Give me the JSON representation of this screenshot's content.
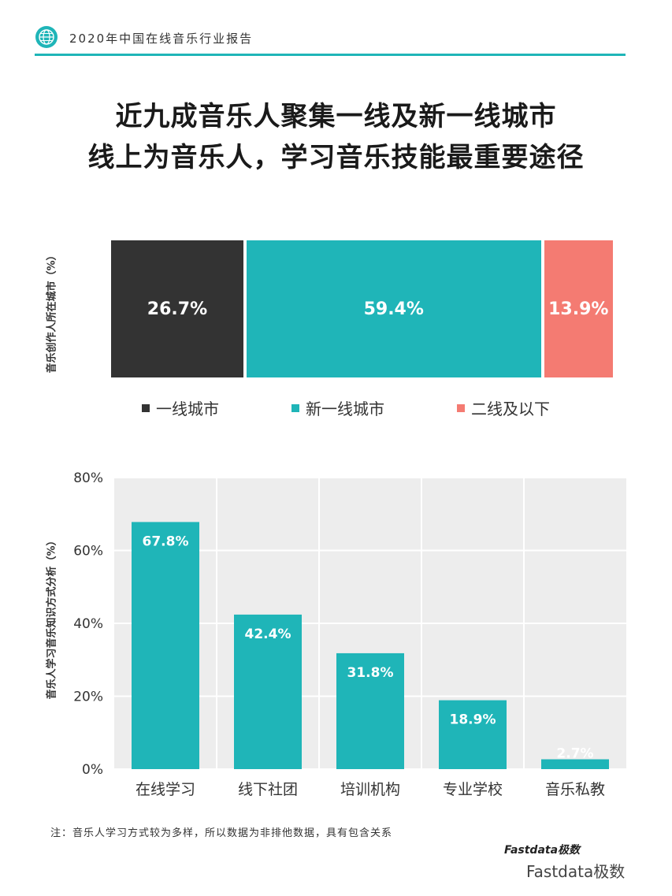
{
  "header": {
    "title": "2020年中国在线音乐行业报告",
    "icon": "globe-icon"
  },
  "main_title": {
    "line1": "近九成音乐人聚集一线及新一线城市",
    "line2": "线上为音乐人，学习音乐技能最重要途径"
  },
  "colors": {
    "accent": "#1fb5b8",
    "dark": "#333333",
    "coral": "#f47b72",
    "grid_bg": "#ededed"
  },
  "note": "注：音乐人学习方式较为多样，所以数据为非排他数据，具有包含关系",
  "brand": "Fastdata极数",
  "watermark": "Fastdata极数",
  "chart_data": [
    {
      "type": "bar",
      "stacked": true,
      "orientation": "horizontal",
      "ylabel": "音乐创作人所在城市（%）",
      "series": [
        {
          "name": "一线城市",
          "value": 26.7,
          "label": "26.7%",
          "color": "#333333"
        },
        {
          "name": "新一线城市",
          "value": 59.4,
          "label": "59.4%",
          "color": "#1fb5b8"
        },
        {
          "name": "二线及以下",
          "value": 13.9,
          "label": "13.9%",
          "color": "#f47b72"
        }
      ],
      "legend_position": "bottom"
    },
    {
      "type": "bar",
      "ylabel": "音乐人学习音乐知识方式分析（%）",
      "categories": [
        "在线学习",
        "线下社团",
        "培训机构",
        "专业学校",
        "音乐私教"
      ],
      "values": [
        67.8,
        42.4,
        31.8,
        18.9,
        2.7
      ],
      "labels": [
        "67.8%",
        "42.4%",
        "31.8%",
        "18.9%",
        "2.7%"
      ],
      "ylim": [
        0,
        80
      ],
      "yticks": [
        "0%",
        "20%",
        "40%",
        "60%",
        "80%"
      ],
      "ytick_values": [
        0,
        20,
        40,
        60,
        80
      ],
      "grid": true,
      "bar_color": "#1fb5b8"
    }
  ]
}
